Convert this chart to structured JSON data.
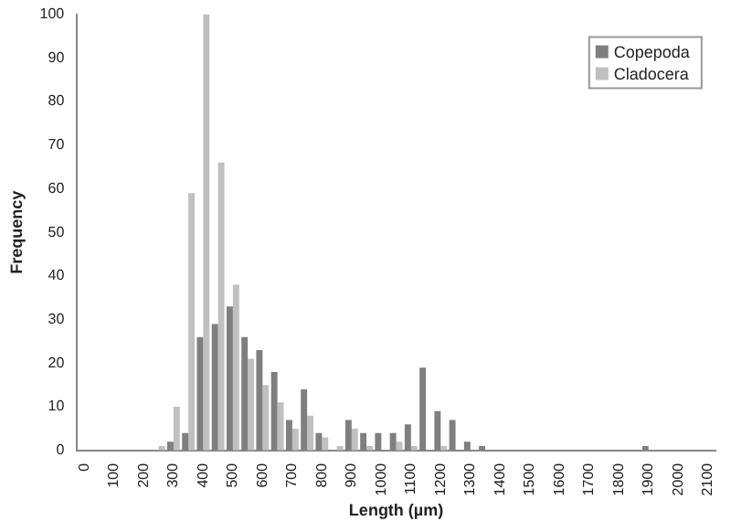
{
  "chart_data": {
    "type": "bar",
    "xlabel": "Length (µm)",
    "ylabel": "Frequency",
    "categories": [
      "0",
      null,
      "100",
      null,
      "200",
      null,
      "300",
      null,
      "400",
      null,
      "500",
      null,
      "600",
      null,
      "700",
      null,
      "800",
      null,
      "900",
      null,
      "1000",
      null,
      "1100",
      null,
      "1200",
      null,
      "1300",
      null,
      "1400",
      null,
      "1500",
      null,
      "1600",
      null,
      "1700",
      null,
      "1800",
      null,
      "1900",
      null,
      "2000",
      null,
      "2100"
    ],
    "series": [
      {
        "name": "Copepoda",
        "color": "#7f7f7f",
        "values": [
          0,
          0,
          0,
          0,
          0,
          0,
          2,
          4,
          26,
          29,
          33,
          26,
          23,
          18,
          7,
          14,
          4,
          0,
          7,
          4,
          4,
          4,
          6,
          19,
          9,
          7,
          2,
          1,
          0,
          0,
          0,
          0,
          0,
          0,
          0,
          0,
          0,
          0,
          1,
          0,
          0,
          0,
          0
        ]
      },
      {
        "name": "Cladocera",
        "color": "#c0c0c0",
        "values": [
          0,
          0,
          0,
          0,
          0,
          1,
          10,
          59,
          100,
          66,
          38,
          21,
          15,
          11,
          5,
          8,
          3,
          1,
          5,
          1,
          0,
          2,
          1,
          0,
          1,
          0,
          0,
          0,
          0,
          0,
          0,
          0,
          0,
          0,
          0,
          0,
          0,
          0,
          0,
          0,
          0,
          0,
          0
        ]
      }
    ],
    "ylim": [
      0,
      100
    ],
    "yticks": [
      0,
      10,
      20,
      30,
      40,
      50,
      60,
      70,
      80,
      90,
      100
    ],
    "grid": false,
    "legend": "top right"
  }
}
